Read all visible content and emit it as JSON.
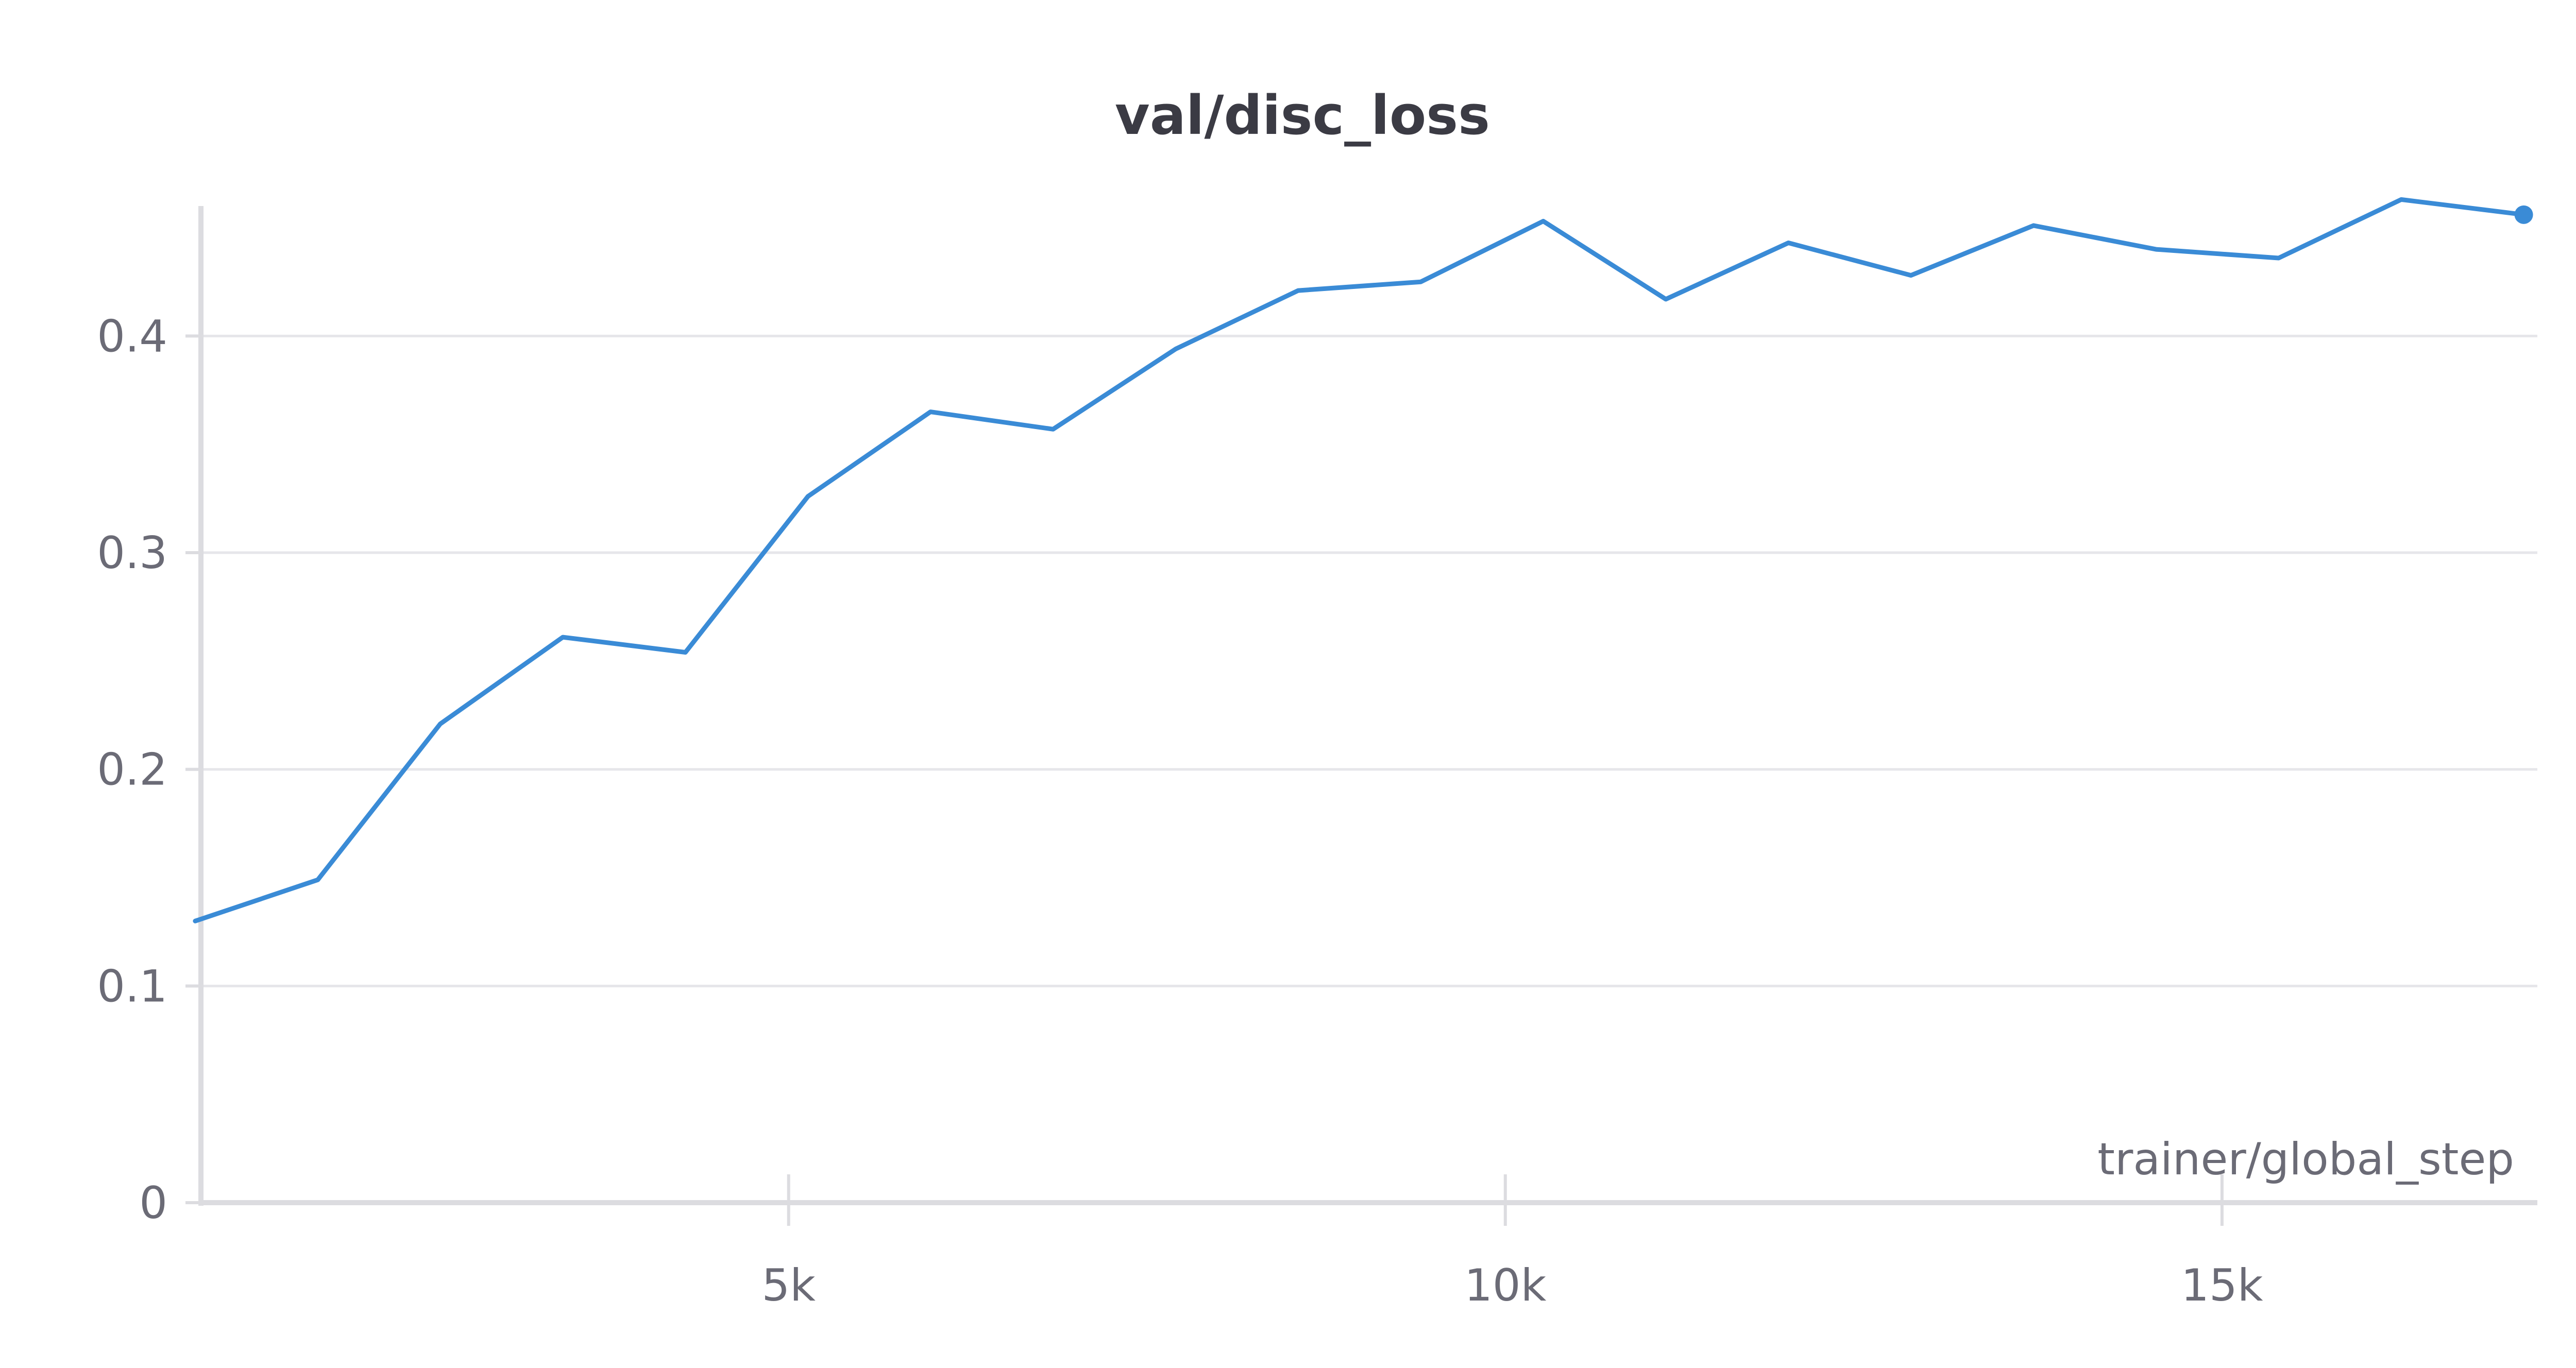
{
  "chart_data": {
    "type": "line",
    "title": "val/disc_loss",
    "xlabel": "trainer/global_step",
    "ylabel": "",
    "xlim": [
      900,
      17200
    ],
    "ylim": [
      0,
      0.46
    ],
    "x_ticks": [
      {
        "value": 5000,
        "label": "5k"
      },
      {
        "value": 10000,
        "label": "10k"
      },
      {
        "value": 15000,
        "label": "15k"
      }
    ],
    "y_ticks": [
      {
        "value": 0,
        "label": "0"
      },
      {
        "value": 0.1,
        "label": "0.1"
      },
      {
        "value": 0.2,
        "label": "0.2"
      },
      {
        "value": 0.3,
        "label": "0.3"
      },
      {
        "value": 0.4,
        "label": "0.4"
      }
    ],
    "grid": true,
    "series": [
      {
        "color": "#3a8bd6",
        "x": [
          860,
          1715,
          2570,
          3425,
          4280,
          5135,
          5990,
          6845,
          7700,
          8555,
          9410,
          10265,
          11120,
          11975,
          12830,
          13685,
          14540,
          15395,
          16250,
          17105
        ],
        "y": [
          0.13,
          0.149,
          0.221,
          0.261,
          0.254,
          0.326,
          0.365,
          0.357,
          0.394,
          0.421,
          0.425,
          0.453,
          0.417,
          0.443,
          0.428,
          0.451,
          0.44,
          0.436,
          0.463,
          0.456
        ]
      }
    ]
  }
}
